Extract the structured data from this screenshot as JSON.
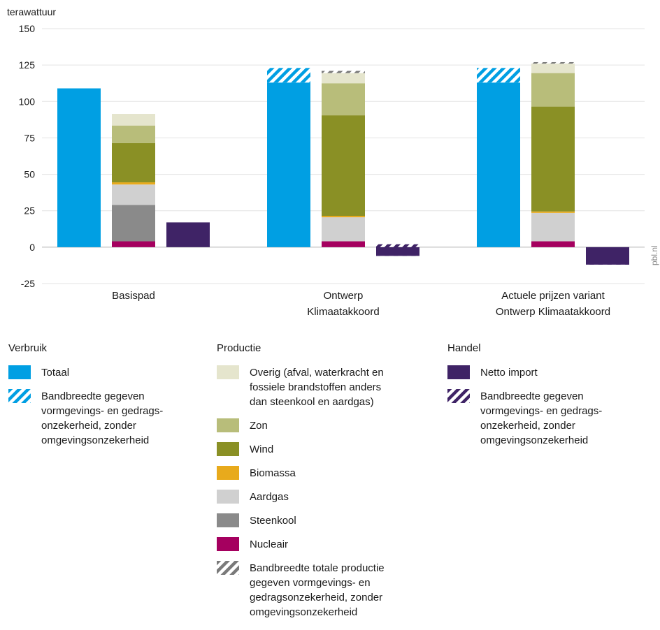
{
  "chart_data": {
    "type": "bar",
    "y_unit": "terawattuur",
    "ylim": [
      -25,
      150
    ],
    "yticks": [
      -25,
      0,
      25,
      50,
      75,
      100,
      125,
      150
    ],
    "grid": true,
    "source": "pbl.nl",
    "categories": [
      "Basispad",
      "Ontwerp\nKlimaatakkoord",
      "Actuele prijzen variant\nOntwerp Klimaatakkoord"
    ],
    "groups": [
      {
        "category": "Basispad",
        "verbruik": {
          "totaal": 109,
          "band": null
        },
        "productie": {
          "nucleair": 4,
          "steenkool": 25,
          "aardgas": 14,
          "biomassa": 1.5,
          "wind": 27,
          "zon": 12,
          "overig": 8,
          "band": null
        },
        "handel": {
          "netto_import": 17,
          "band": null
        }
      },
      {
        "category": "Ontwerp\nKlimaatakkoord",
        "verbruik": {
          "totaal": 113,
          "band": [
            113,
            123
          ]
        },
        "productie": {
          "nucleair": 4,
          "steenkool": 0,
          "aardgas": 16.5,
          "biomassa": 1,
          "wind": 69,
          "zon": 22,
          "overig": 7,
          "band": [
            119.5,
            121
          ]
        },
        "handel": {
          "netto_import": -6,
          "band": [
            -6,
            2
          ]
        }
      },
      {
        "category": "Actuele prijzen variant\nOntwerp Klimaatakkoord",
        "verbruik": {
          "totaal": 113,
          "band": [
            113,
            123
          ]
        },
        "productie": {
          "nucleair": 4,
          "steenkool": 0,
          "aardgas": 19.5,
          "biomassa": 1,
          "wind": 72,
          "zon": 23,
          "overig": 6.5,
          "band": [
            126,
            127
          ]
        },
        "handel": {
          "netto_import": -12,
          "band": [
            -12,
            -6
          ]
        }
      }
    ]
  },
  "colors": {
    "totaal": "#009fe3",
    "netto_import": "#3f2366",
    "overig": "#e5e5cd",
    "zon": "#b8bd7a",
    "wind": "#8a9025",
    "biomassa": "#e8aa1c",
    "aardgas": "#d0d0d0",
    "steenkool": "#8a8a8a",
    "nucleair": "#a5005f",
    "band_productie": "#7a7a7a"
  },
  "legend": {
    "verbruik": {
      "heading": "Verbruik",
      "items": [
        {
          "key": "totaal",
          "label": "Totaal"
        },
        {
          "key": "band_verbruik",
          "label": "Bandbreedte gegeven\nvormgevings- en gedrags-\nonzekerheid, zonder\nomgevingsonzekerheid"
        }
      ]
    },
    "productie": {
      "heading": "Productie",
      "items": [
        {
          "key": "overig",
          "label": "Overig (afval, waterkracht en\nfossiele brandstoffen anders\ndan steenkool en aardgas)"
        },
        {
          "key": "zon",
          "label": "Zon"
        },
        {
          "key": "wind",
          "label": "Wind"
        },
        {
          "key": "biomassa",
          "label": "Biomassa"
        },
        {
          "key": "aardgas",
          "label": "Aardgas"
        },
        {
          "key": "steenkool",
          "label": "Steenkool"
        },
        {
          "key": "nucleair",
          "label": "Nucleair"
        },
        {
          "key": "band_productie",
          "label": "Bandbreedte totale productie\ngegeven vormgevings- en\ngedragsonzekerheid, zonder\nomgevingsonzekerheid"
        }
      ]
    },
    "handel": {
      "heading": "Handel",
      "items": [
        {
          "key": "netto_import",
          "label": "Netto import"
        },
        {
          "key": "band_handel",
          "label": "Bandbreedte gegeven\nvormgevings- en gedrags-\nonzekerheid, zonder\nomgevingsonzekerheid"
        }
      ]
    }
  }
}
